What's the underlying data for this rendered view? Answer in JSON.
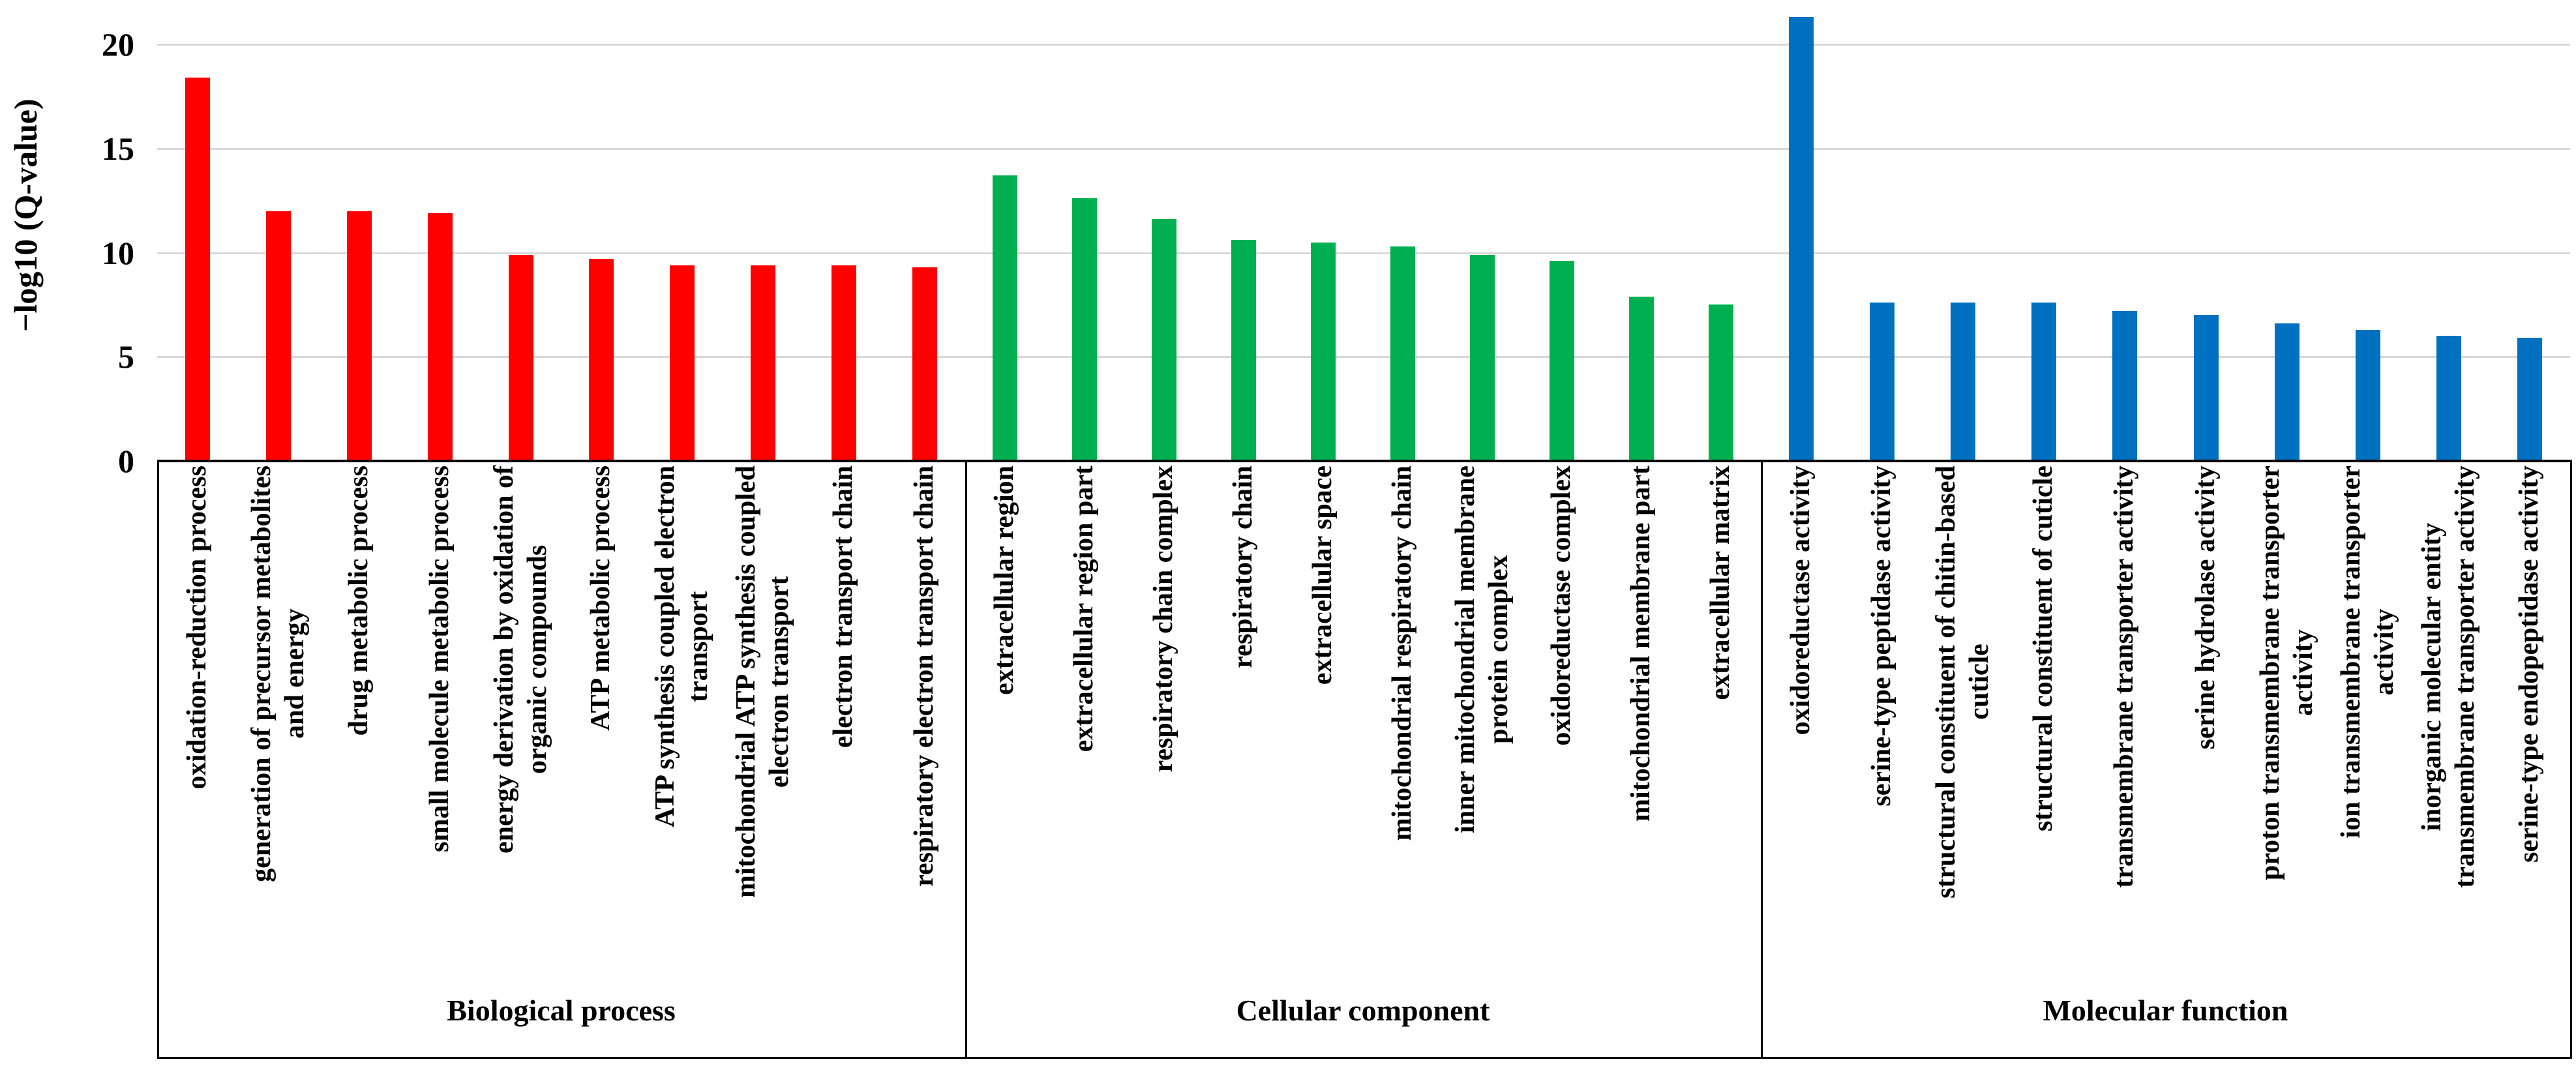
{
  "chart_data": {
    "type": "bar",
    "title": "",
    "xlabel": "",
    "ylabel": "−log10 (Q-value)",
    "ylim": [
      0,
      20
    ],
    "yticks": [
      0,
      5,
      10,
      15,
      20
    ],
    "grid": true,
    "legend_position": "none",
    "groups": [
      {
        "name": "Biological process",
        "color": "#FF0000",
        "bars": [
          {
            "label": "oxidation-reduction process",
            "value": 18.4
          },
          {
            "label": "generation of precursor metabolites\nand energy",
            "value": 12.0
          },
          {
            "label": "drug metabolic process",
            "value": 12.0
          },
          {
            "label": "small molecule metabolic process",
            "value": 11.9
          },
          {
            "label": "energy derivation by oxidation of\norganic compounds",
            "value": 9.9
          },
          {
            "label": "ATP metabolic process",
            "value": 9.7
          },
          {
            "label": "ATP synthesis coupled electron\ntransport",
            "value": 9.4
          },
          {
            "label": "mitochondrial ATP synthesis coupled\nelectron transport",
            "value": 9.4
          },
          {
            "label": "electron transport chain",
            "value": 9.4
          },
          {
            "label": "respiratory electron transport chain",
            "value": 9.3
          }
        ]
      },
      {
        "name": "Cellular component",
        "color": "#00B050",
        "bars": [
          {
            "label": "extracellular region",
            "value": 13.7
          },
          {
            "label": "extracellular region part",
            "value": 12.6
          },
          {
            "label": "respiratory chain complex",
            "value": 11.6
          },
          {
            "label": "respiratory chain",
            "value": 10.6
          },
          {
            "label": "extracellular space",
            "value": 10.5
          },
          {
            "label": "mitochondrial respiratory chain",
            "value": 10.3
          },
          {
            "label": "inner mitochondrial membrane\nprotein complex",
            "value": 9.9
          },
          {
            "label": "oxidoreductase complex",
            "value": 9.6
          },
          {
            "label": "mitochondrial membrane part",
            "value": 7.9
          },
          {
            "label": "extracellular matrix",
            "value": 7.5
          }
        ]
      },
      {
        "name": "Molecular function",
        "color": "#0070C0",
        "bars": [
          {
            "label": "oxidoreductase activity",
            "value": 21.3
          },
          {
            "label": "serine-type peptidase activity",
            "value": 7.6
          },
          {
            "label": "structural constituent of chitin-based\ncuticle",
            "value": 7.6
          },
          {
            "label": "structural constituent of cuticle",
            "value": 7.6
          },
          {
            "label": "transmembrane transporter activity",
            "value": 7.2
          },
          {
            "label": "serine hydrolase activity",
            "value": 7.0
          },
          {
            "label": "proton transmembrane transporter\nactivity",
            "value": 6.6
          },
          {
            "label": "ion transmembrane transporter\nactivity",
            "value": 6.3
          },
          {
            "label": "inorganic molecular entity\ntransmembrane transporter activity",
            "value": 6.0
          },
          {
            "label": "serine-type endopeptidase activity",
            "value": 5.9
          }
        ]
      }
    ]
  }
}
